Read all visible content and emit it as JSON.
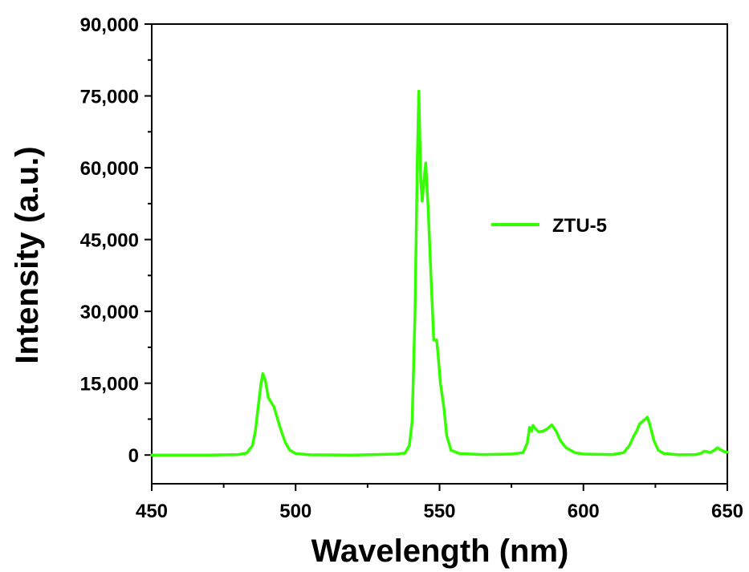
{
  "chart_data": {
    "type": "line",
    "xlabel": "Wavelength (nm)",
    "ylabel": "Intensity (a.u.)",
    "xlim": [
      450,
      650
    ],
    "ylim": [
      -6000,
      90000
    ],
    "x_ticks": [
      450,
      500,
      550,
      600,
      650
    ],
    "x_tick_labels": [
      "450",
      "500",
      "550",
      "600",
      "650"
    ],
    "y_ticks": [
      0,
      15000,
      30000,
      45000,
      60000,
      75000,
      90000
    ],
    "y_tick_labels": [
      "0",
      "15,000",
      "30,000",
      "45,000",
      "60,000",
      "75,000",
      "90,000"
    ],
    "grid": false,
    "legend_position": "upper-right",
    "series": [
      {
        "name": "ZTU-5",
        "color": "#33ff00",
        "points": [
          [
            450,
            0
          ],
          [
            460,
            0
          ],
          [
            470,
            0
          ],
          [
            480,
            100
          ],
          [
            483,
            400
          ],
          [
            485,
            2000
          ],
          [
            486,
            5000
          ],
          [
            487,
            10000
          ],
          [
            488,
            15000
          ],
          [
            488.6,
            17000
          ],
          [
            489.5,
            15500
          ],
          [
            490.5,
            12000
          ],
          [
            491.3,
            11200
          ],
          [
            492.5,
            10000
          ],
          [
            493.5,
            8000
          ],
          [
            495,
            5000
          ],
          [
            496.5,
            2500
          ],
          [
            498,
            1000
          ],
          [
            500,
            300
          ],
          [
            505,
            50
          ],
          [
            520,
            0
          ],
          [
            535,
            200
          ],
          [
            538,
            400
          ],
          [
            539.5,
            2000
          ],
          [
            540.5,
            7000
          ],
          [
            541.5,
            30000
          ],
          [
            542.3,
            62000
          ],
          [
            542.8,
            76000
          ],
          [
            543.5,
            57000
          ],
          [
            544,
            53000
          ],
          [
            544.5,
            57000
          ],
          [
            545.2,
            61000
          ],
          [
            546,
            52000
          ],
          [
            547,
            38000
          ],
          [
            548,
            24000
          ],
          [
            549,
            24000
          ],
          [
            549.5,
            21000
          ],
          [
            550.3,
            15000
          ],
          [
            551.5,
            10000
          ],
          [
            552.5,
            4000
          ],
          [
            554,
            1000
          ],
          [
            557,
            300
          ],
          [
            565,
            100
          ],
          [
            575,
            200
          ],
          [
            579,
            500
          ],
          [
            580.5,
            2500
          ],
          [
            581.3,
            5800
          ],
          [
            582,
            5000
          ],
          [
            582.5,
            6200
          ],
          [
            583.3,
            5500
          ],
          [
            584.5,
            4800
          ],
          [
            586,
            5000
          ],
          [
            587.5,
            5500
          ],
          [
            589,
            6300
          ],
          [
            590.5,
            5000
          ],
          [
            592,
            3000
          ],
          [
            594,
            1500
          ],
          [
            597,
            500
          ],
          [
            600,
            200
          ],
          [
            610,
            100
          ],
          [
            614,
            500
          ],
          [
            616,
            2000
          ],
          [
            617.5,
            4000
          ],
          [
            618.5,
            5000
          ],
          [
            619.5,
            6500
          ],
          [
            620.5,
            7000
          ],
          [
            621.5,
            7500
          ],
          [
            622.2,
            7900
          ],
          [
            623,
            6500
          ],
          [
            624.5,
            3000
          ],
          [
            626,
            1000
          ],
          [
            628,
            300
          ],
          [
            633,
            50
          ],
          [
            639,
            100
          ],
          [
            641,
            400
          ],
          [
            642,
            800
          ],
          [
            643,
            700
          ],
          [
            644,
            500
          ],
          [
            645.5,
            1000
          ],
          [
            646.5,
            1500
          ],
          [
            648,
            1000
          ],
          [
            649,
            700
          ],
          [
            650,
            600
          ]
        ]
      }
    ]
  }
}
